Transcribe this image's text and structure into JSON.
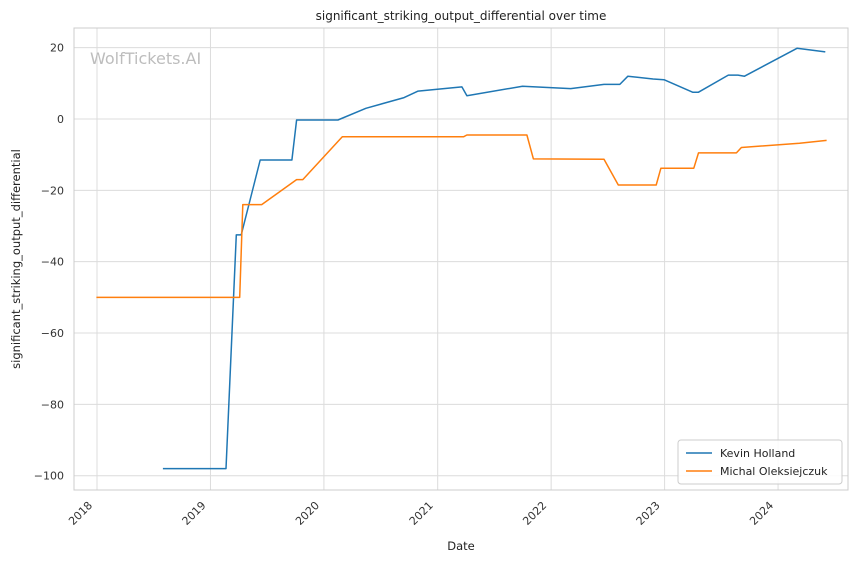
{
  "chart_data": {
    "type": "line",
    "title": "significant_striking_output_differential over time",
    "xlabel": "Date",
    "ylabel": "significant_striking_output_differential",
    "watermark": "WolfTickets.AI",
    "xlim": [
      "2017-10-19",
      "2024-08-13"
    ],
    "ylim": [
      -104,
      25.5
    ],
    "x_ticks": [
      "2018",
      "2019",
      "2020",
      "2021",
      "2022",
      "2023",
      "2024"
    ],
    "y_ticks": [
      20,
      0,
      -20,
      -40,
      -60,
      -80,
      -100
    ],
    "grid": true,
    "legend_position": "lower-right",
    "series": [
      {
        "name": "Kevin Holland",
        "color": "#1f77b4",
        "points": [
          [
            "2018-08-01",
            -98
          ],
          [
            "2019-02-20",
            -98
          ],
          [
            "2019-03-25",
            -32.5
          ],
          [
            "2019-04-10",
            -32.5
          ],
          [
            "2019-06-10",
            -11.5
          ],
          [
            "2019-09-20",
            -11.5
          ],
          [
            "2019-10-05",
            -0.3
          ],
          [
            "2020-02-15",
            -0.3
          ],
          [
            "2020-05-15",
            3
          ],
          [
            "2020-09-15",
            6
          ],
          [
            "2020-10-30",
            7.8
          ],
          [
            "2021-03-20",
            9
          ],
          [
            "2021-04-05",
            6.5
          ],
          [
            "2021-10-01",
            9.2
          ],
          [
            "2022-03-05",
            8.5
          ],
          [
            "2022-06-20",
            9.7
          ],
          [
            "2022-08-10",
            9.7
          ],
          [
            "2022-09-05",
            12
          ],
          [
            "2022-11-25",
            11.2
          ],
          [
            "2022-12-30",
            11
          ],
          [
            "2023-04-01",
            7.5
          ],
          [
            "2023-04-20",
            7.5
          ],
          [
            "2023-07-25",
            12.3
          ],
          [
            "2023-08-25",
            12.3
          ],
          [
            "2023-09-15",
            12
          ],
          [
            "2024-03-02",
            19.8
          ],
          [
            "2024-06-01",
            18.8
          ]
        ]
      },
      {
        "name": "Michal Oleksiejczuk",
        "color": "#ff7f0e",
        "points": [
          [
            "2017-12-30",
            -50
          ],
          [
            "2019-04-05",
            -50
          ],
          [
            "2019-04-15",
            -24
          ],
          [
            "2019-06-15",
            -24
          ],
          [
            "2019-10-05",
            -17
          ],
          [
            "2019-10-25",
            -17
          ],
          [
            "2020-02-29",
            -5
          ],
          [
            "2021-03-25",
            -5
          ],
          [
            "2021-04-05",
            -4.5
          ],
          [
            "2021-10-15",
            -4.5
          ],
          [
            "2021-11-05",
            -11.2
          ],
          [
            "2022-06-20",
            -11.3
          ],
          [
            "2022-08-05",
            -18.5
          ],
          [
            "2022-12-05",
            -18.5
          ],
          [
            "2022-12-20",
            -13.8
          ],
          [
            "2023-04-05",
            -13.8
          ],
          [
            "2023-04-20",
            -9.5
          ],
          [
            "2023-08-20",
            -9.5
          ],
          [
            "2023-09-05",
            -8
          ],
          [
            "2024-03-10",
            -6.8
          ],
          [
            "2024-06-05",
            -6
          ]
        ]
      }
    ]
  }
}
